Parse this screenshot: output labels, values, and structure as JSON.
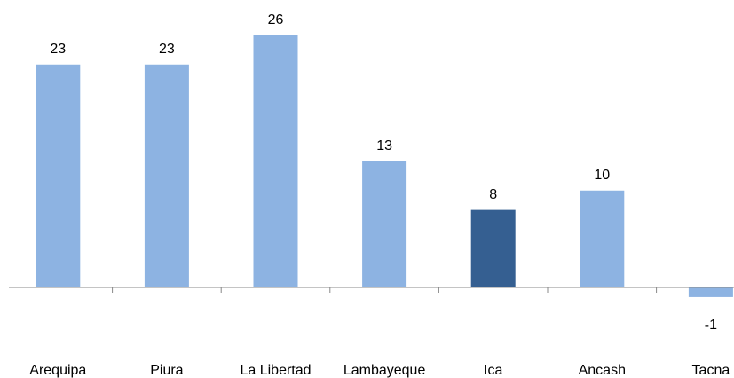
{
  "chart_data": {
    "type": "bar",
    "categories": [
      "Arequipa",
      "Piura",
      "La Libertad",
      "Lambayeque",
      "Ica",
      "Ancash",
      "Tacna"
    ],
    "values": [
      23,
      23,
      26,
      13,
      8,
      10,
      -1
    ],
    "colors": [
      "#8db3e2",
      "#8db3e2",
      "#8db3e2",
      "#8db3e2",
      "#355f91",
      "#8db3e2",
      "#8db3e2"
    ]
  }
}
